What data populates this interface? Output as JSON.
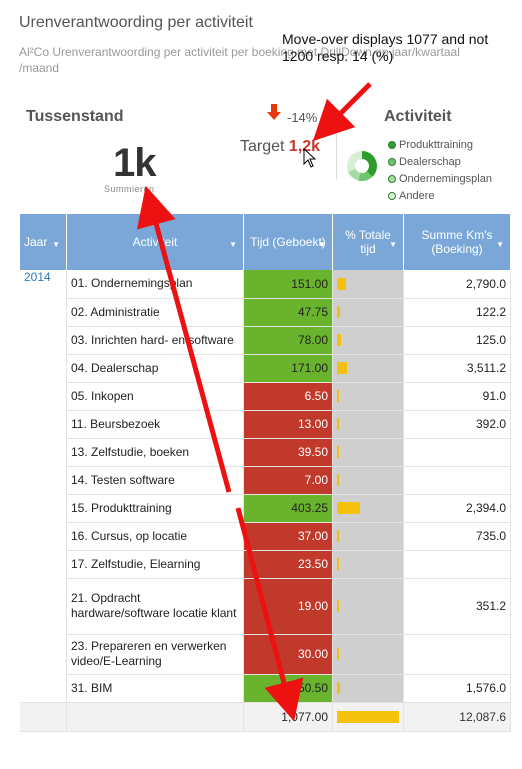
{
  "header": {
    "title": "Urenverantwoording per activiteit",
    "subtitle": "Al²Co Urenverantwoording per activiteit per boeking met DrillDown op jaar/kwartaal /maand"
  },
  "callout": "Move-over displays 1077 and not 1200 resp. 14 (%)",
  "kpi": {
    "label": "Tussenstand",
    "value": "1k",
    "sub": "Summieren",
    "delta": "-14%",
    "target_label": "Target",
    "target_value": "1,2k"
  },
  "activity_legend": {
    "title": "Activiteit",
    "items": [
      "Produkttraining",
      "Dealerschap",
      "Ondernemingsplan",
      "Andere"
    ],
    "colors": [
      "#2e9d2e",
      "#6fc46f",
      "#a5dca5",
      "#d6f0d6"
    ]
  },
  "table": {
    "headers": {
      "jaar": "Jaar",
      "activiteit": "Activiteit",
      "tijd": "Tijd (Geboekt)",
      "pct": "% Totale tijd",
      "km": "Summe Km's (Boeking)"
    },
    "year": "2014",
    "rows": [
      {
        "act": "01. Ondernemingsplan",
        "tijd": "151.00",
        "status": "green",
        "pct": 14.0,
        "km": "2,790.0"
      },
      {
        "act": "02. Administratie",
        "tijd": "47.75",
        "status": "green",
        "pct": 4.4,
        "km": "122.2"
      },
      {
        "act": "03. Inrichten hard- en software",
        "tijd": "78.00",
        "status": "green",
        "pct": 7.2,
        "km": "125.0"
      },
      {
        "act": "04. Dealerschap",
        "tijd": "171.00",
        "status": "green",
        "pct": 15.9,
        "km": "3,511.2"
      },
      {
        "act": "05. Inkopen",
        "tijd": "6.50",
        "status": "red",
        "pct": 0.6,
        "km": "91.0"
      },
      {
        "act": "11. Beursbezoek",
        "tijd": "13.00",
        "status": "red",
        "pct": 1.2,
        "km": "392.0"
      },
      {
        "act": "13. Zelfstudie, boeken",
        "tijd": "39.50",
        "status": "red",
        "pct": 3.7,
        "km": ""
      },
      {
        "act": "14. Testen software",
        "tijd": "7.00",
        "status": "red",
        "pct": 0.6,
        "km": ""
      },
      {
        "act": "15. Produkttraining",
        "tijd": "403.25",
        "status": "green",
        "pct": 37.4,
        "km": "2,394.0"
      },
      {
        "act": "16. Cursus, op locatie",
        "tijd": "37.00",
        "status": "red",
        "pct": 3.4,
        "km": "735.0"
      },
      {
        "act": "17. Zelfstudie, Elearning",
        "tijd": "23.50",
        "status": "red",
        "pct": 2.2,
        "km": ""
      },
      {
        "act": "21. Opdracht hardware/software locatie klant",
        "tijd": "19.00",
        "status": "red",
        "pct": 1.8,
        "km": "351.2"
      },
      {
        "act": "23. Prepareren en verwerken video/E-Learning",
        "tijd": "30.00",
        "status": "red",
        "pct": 2.8,
        "km": ""
      },
      {
        "act": "31. BIM",
        "tijd": "50.50",
        "status": "green",
        "pct": 4.7,
        "km": "1,576.0"
      }
    ],
    "total": {
      "tijd": "1,077.00",
      "pct": 100,
      "km": "12,087.6"
    }
  }
}
